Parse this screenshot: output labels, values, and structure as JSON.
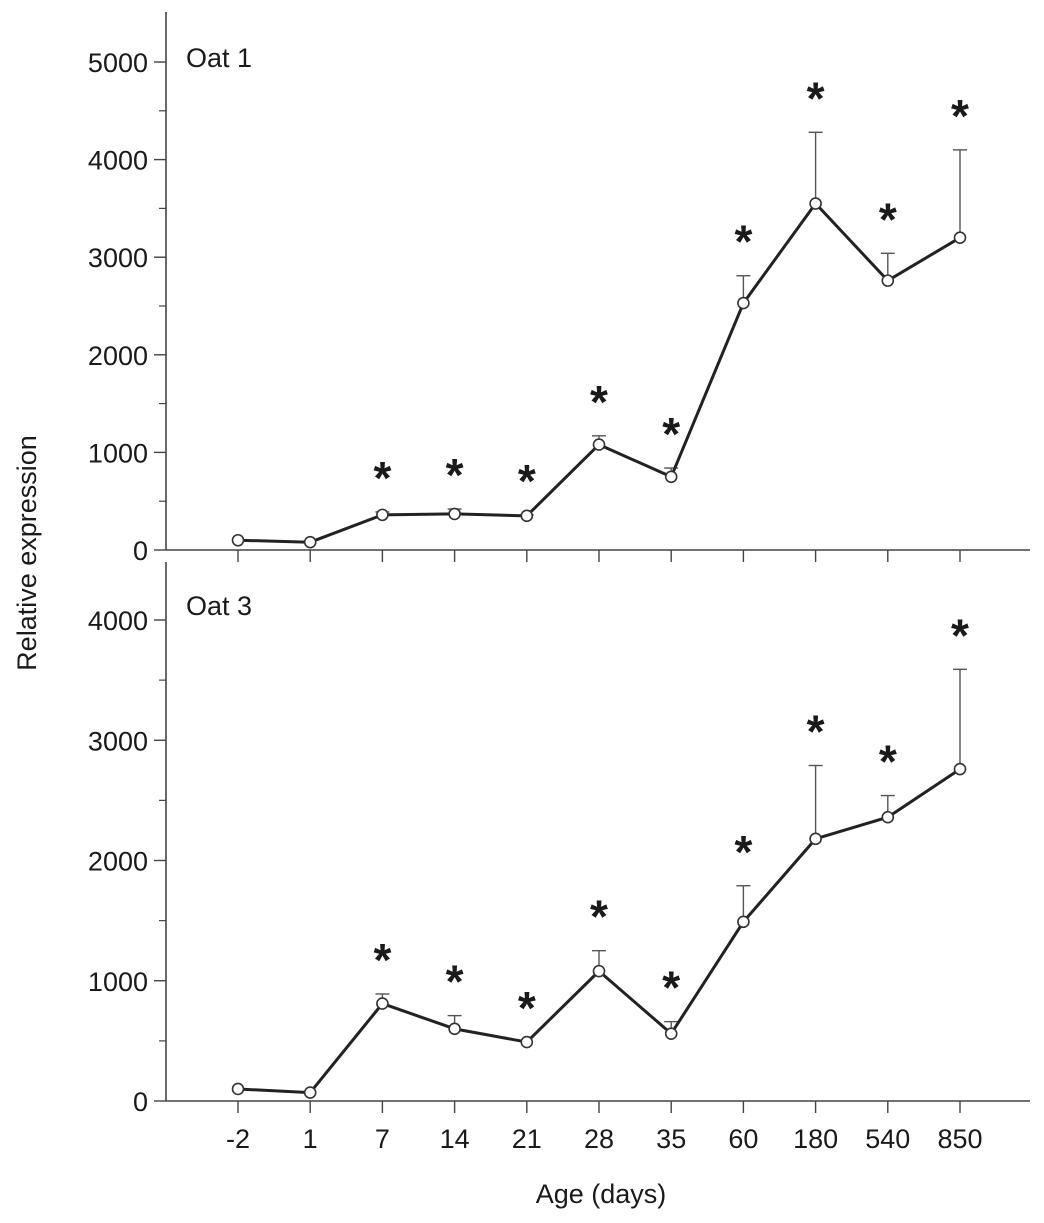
{
  "figure": {
    "ylabel": "Relative expression",
    "xlabel": "Age (days)"
  },
  "chart_data": [
    {
      "type": "line",
      "panel_label": "Oat 1",
      "categories": [
        "-2",
        "1",
        "7",
        "14",
        "21",
        "28",
        "35",
        "60",
        "180",
        "540",
        "850"
      ],
      "values": [
        100,
        80,
        360,
        370,
        350,
        1080,
        750,
        2530,
        3550,
        2760,
        3200
      ],
      "error_upper": [
        100,
        80,
        390,
        420,
        360,
        1170,
        840,
        2810,
        4280,
        3040,
        4100
      ],
      "significant": [
        false,
        false,
        true,
        true,
        true,
        true,
        true,
        true,
        true,
        true,
        true
      ],
      "significance_marker": "*",
      "ylim": [
        0,
        5000
      ],
      "yticks": [
        0,
        1000,
        2000,
        3000,
        4000,
        5000
      ],
      "grid": false,
      "xlabel": "",
      "ylabel": ""
    },
    {
      "type": "line",
      "panel_label": "Oat 3",
      "categories": [
        "-2",
        "1",
        "7",
        "14",
        "21",
        "28",
        "35",
        "60",
        "180",
        "540",
        "850"
      ],
      "values": [
        100,
        70,
        810,
        600,
        490,
        1080,
        560,
        1490,
        2180,
        2360,
        2760
      ],
      "error_upper": [
        100,
        70,
        890,
        710,
        490,
        1250,
        660,
        1790,
        2790,
        2540,
        3590
      ],
      "significant": [
        false,
        false,
        true,
        true,
        true,
        true,
        true,
        true,
        true,
        true,
        true
      ],
      "significance_marker": "*",
      "ylim": [
        0,
        4400
      ],
      "yticks": [
        0,
        1000,
        2000,
        3000,
        4000
      ],
      "grid": false,
      "xlabel": "Age (days)",
      "ylabel": ""
    }
  ]
}
